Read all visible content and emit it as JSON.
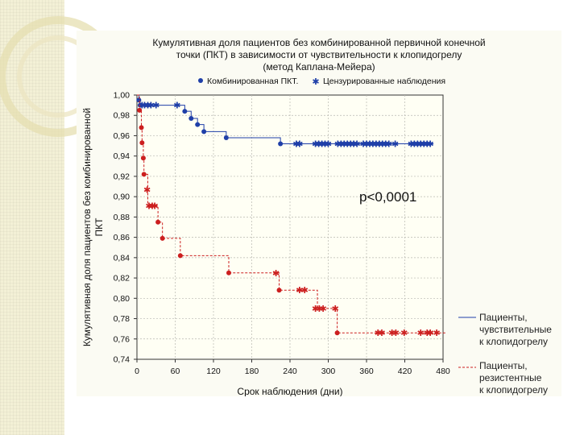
{
  "chart_data": {
    "type": "line",
    "subtype": "kaplan-meier",
    "title_lines": [
      "Кумулятивная доля пациентов без комбинированной первичной конечной",
      "точки (ПКТ) в зависимости от чувствительности к клопидогрелу",
      "(метод Каплана-Мейера)"
    ],
    "xlabel": "Срок наблюдения (дни)",
    "ylabel_lines": [
      "Кумулятивная доля пациентов без комбинированной",
      "ПКТ"
    ],
    "xlim": [
      0,
      480
    ],
    "ylim": [
      0.74,
      1.0
    ],
    "x_ticks": [
      0,
      60,
      120,
      180,
      240,
      300,
      360,
      420,
      480
    ],
    "x_tick_labels": [
      "0",
      "60",
      "120",
      "180",
      "240",
      "300",
      "360",
      "420",
      "480"
    ],
    "y_ticks": [
      0.74,
      0.76,
      0.78,
      0.8,
      0.82,
      0.84,
      0.86,
      0.88,
      0.9,
      0.92,
      0.94,
      0.96,
      0.98,
      1.0
    ],
    "y_tick_labels": [
      "0,74",
      "0,76",
      "0,78",
      "0,80",
      "0,82",
      "0,84",
      "0,86",
      "0,88",
      "0,90",
      "0,92",
      "0,94",
      "0,96",
      "0,98",
      "1,00"
    ],
    "legend_top": {
      "event": "Комбинированная ПКТ.",
      "censored": "Цензурированные наблюдения"
    },
    "annotation": "p<0,0001",
    "series": [
      {
        "name": "Пациенты, чувствительные к клопидогрелу",
        "legend_lines": [
          "Пациенты,",
          "чувствительные",
          "к клопидогрелу"
        ],
        "color": "#1f3fa8",
        "line_style": "solid",
        "steps": [
          [
            0,
            1.0
          ],
          [
            3,
            0.995
          ],
          [
            5,
            0.99
          ],
          [
            75,
            0.984
          ],
          [
            85,
            0.977
          ],
          [
            95,
            0.971
          ],
          [
            105,
            0.964
          ],
          [
            140,
            0.958
          ],
          [
            225,
            0.952
          ],
          [
            465,
            0.952
          ]
        ],
        "events": [
          [
            3,
            0.995
          ],
          [
            5,
            0.99
          ],
          [
            75,
            0.984
          ],
          [
            85,
            0.977
          ],
          [
            95,
            0.971
          ],
          [
            105,
            0.964
          ],
          [
            140,
            0.958
          ],
          [
            225,
            0.952
          ]
        ],
        "censored": [
          [
            8,
            0.99
          ],
          [
            12,
            0.99
          ],
          [
            17,
            0.99
          ],
          [
            22,
            0.99
          ],
          [
            30,
            0.99
          ],
          [
            63,
            0.99
          ],
          [
            250,
            0.952
          ],
          [
            255,
            0.952
          ],
          [
            280,
            0.952
          ],
          [
            285,
            0.952
          ],
          [
            290,
            0.952
          ],
          [
            295,
            0.952
          ],
          [
            300,
            0.952
          ],
          [
            315,
            0.952
          ],
          [
            320,
            0.952
          ],
          [
            325,
            0.952
          ],
          [
            330,
            0.952
          ],
          [
            335,
            0.952
          ],
          [
            340,
            0.952
          ],
          [
            345,
            0.952
          ],
          [
            355,
            0.952
          ],
          [
            360,
            0.952
          ],
          [
            365,
            0.952
          ],
          [
            370,
            0.952
          ],
          [
            375,
            0.952
          ],
          [
            380,
            0.952
          ],
          [
            385,
            0.952
          ],
          [
            390,
            0.952
          ],
          [
            395,
            0.952
          ],
          [
            405,
            0.952
          ],
          [
            430,
            0.952
          ],
          [
            435,
            0.952
          ],
          [
            440,
            0.952
          ],
          [
            445,
            0.952
          ],
          [
            450,
            0.952
          ],
          [
            455,
            0.952
          ],
          [
            460,
            0.952
          ]
        ]
      },
      {
        "name": "Пациенты, резистентные к клопидогрелу",
        "legend_lines": [
          "Пациенты,",
          "резистентные",
          "к клопидогрелу"
        ],
        "color": "#cc1f1f",
        "line_style": "dashed",
        "steps": [
          [
            0,
            1.0
          ],
          [
            4,
            0.985
          ],
          [
            7,
            0.968
          ],
          [
            8,
            0.953
          ],
          [
            10,
            0.938
          ],
          [
            11,
            0.922
          ],
          [
            17,
            0.891
          ],
          [
            33,
            0.875
          ],
          [
            40,
            0.859
          ],
          [
            68,
            0.842
          ],
          [
            144,
            0.825
          ],
          [
            223,
            0.808
          ],
          [
            283,
            0.79
          ],
          [
            314,
            0.766
          ],
          [
            485,
            0.766
          ]
        ],
        "events": [
          [
            4,
            0.985
          ],
          [
            7,
            0.968
          ],
          [
            8,
            0.953
          ],
          [
            10,
            0.938
          ],
          [
            11,
            0.922
          ],
          [
            33,
            0.875
          ],
          [
            40,
            0.859
          ],
          [
            68,
            0.842
          ],
          [
            144,
            0.825
          ],
          [
            223,
            0.808
          ],
          [
            314,
            0.766
          ]
        ],
        "censored": [
          [
            16,
            0.907
          ],
          [
            19,
            0.891
          ],
          [
            24,
            0.891
          ],
          [
            28,
            0.891
          ],
          [
            218,
            0.825
          ],
          [
            255,
            0.808
          ],
          [
            263,
            0.808
          ],
          [
            280,
            0.79
          ],
          [
            286,
            0.79
          ],
          [
            292,
            0.79
          ],
          [
            311,
            0.79
          ],
          [
            378,
            0.766
          ],
          [
            384,
            0.766
          ],
          [
            400,
            0.766
          ],
          [
            406,
            0.766
          ],
          [
            419,
            0.766
          ],
          [
            445,
            0.766
          ],
          [
            455,
            0.766
          ],
          [
            460,
            0.766
          ],
          [
            470,
            0.766
          ]
        ]
      }
    ]
  }
}
